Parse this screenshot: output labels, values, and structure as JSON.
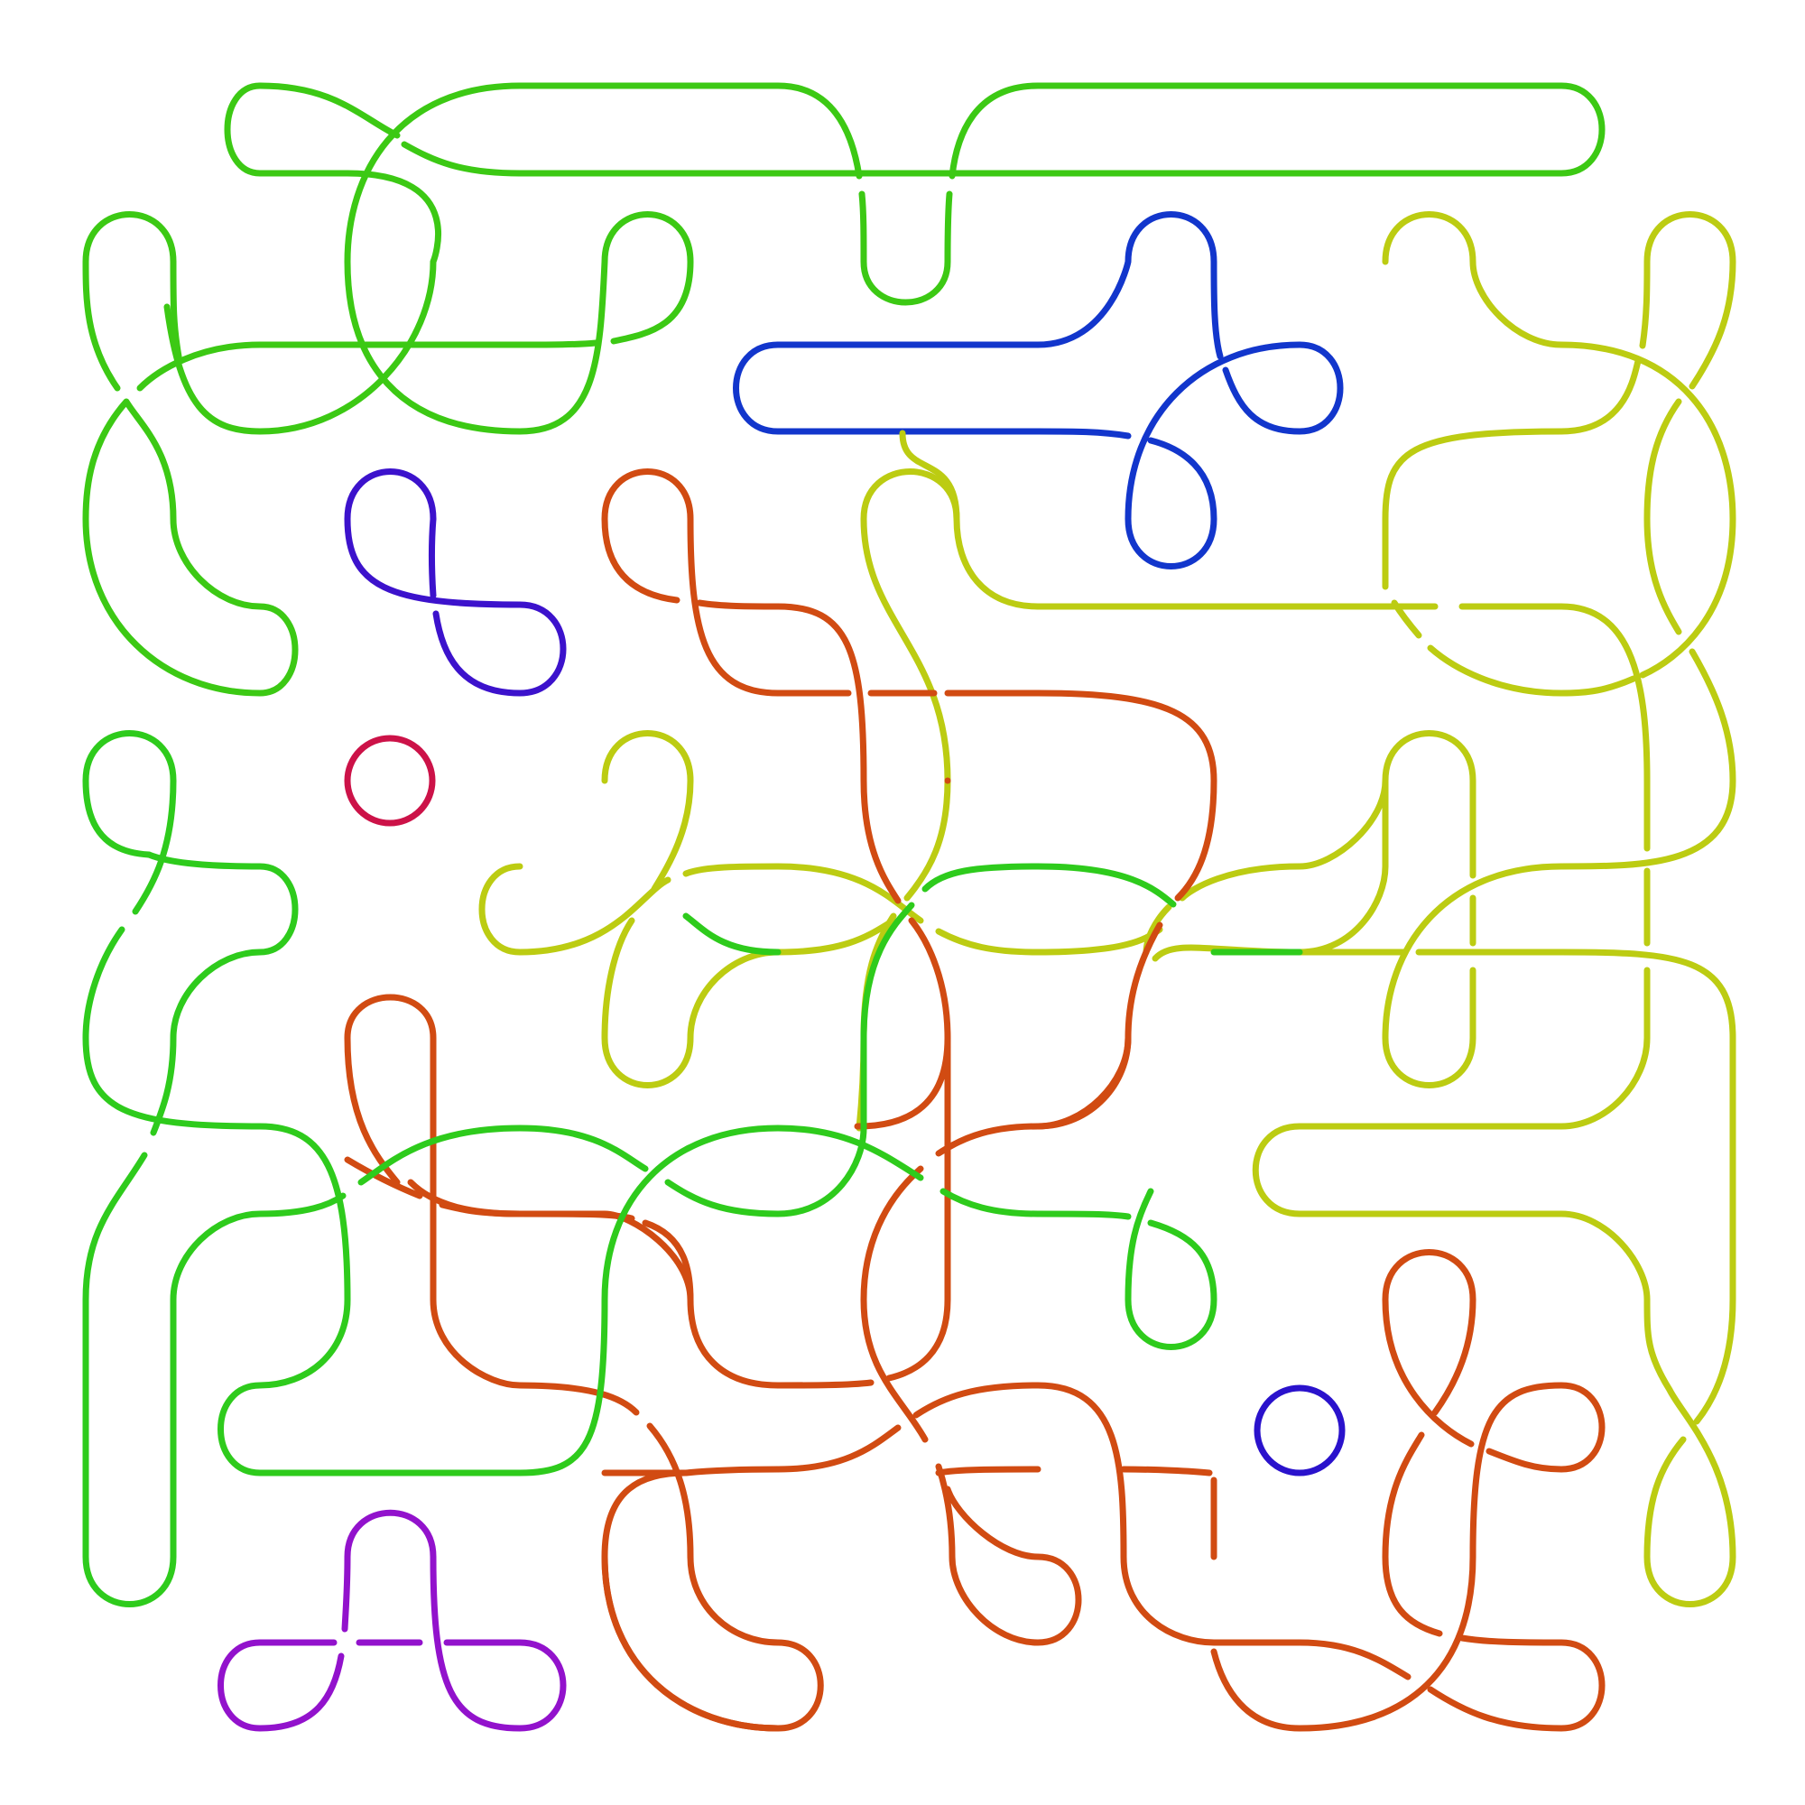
{
  "diagram": {
    "kind": "knot-link-diagram",
    "background": "#ffffff",
    "components": [
      {
        "name": "green-large-component",
        "color": "#3cc914"
      },
      {
        "name": "green-left-component",
        "color": "#2ecb1c"
      },
      {
        "name": "yellow-green-component",
        "color": "#bccc12"
      },
      {
        "name": "orange-component",
        "color": "#d14b12"
      },
      {
        "name": "blue-component",
        "color": "#1236cc"
      },
      {
        "name": "indigo-loop-component",
        "color": "#3c12cc"
      },
      {
        "name": "crimson-loop-component",
        "color": "#cc1248"
      },
      {
        "name": "violet-component",
        "color": "#9212cc"
      },
      {
        "name": "blue-small-loop-component",
        "color": "#2a12cc"
      }
    ]
  }
}
